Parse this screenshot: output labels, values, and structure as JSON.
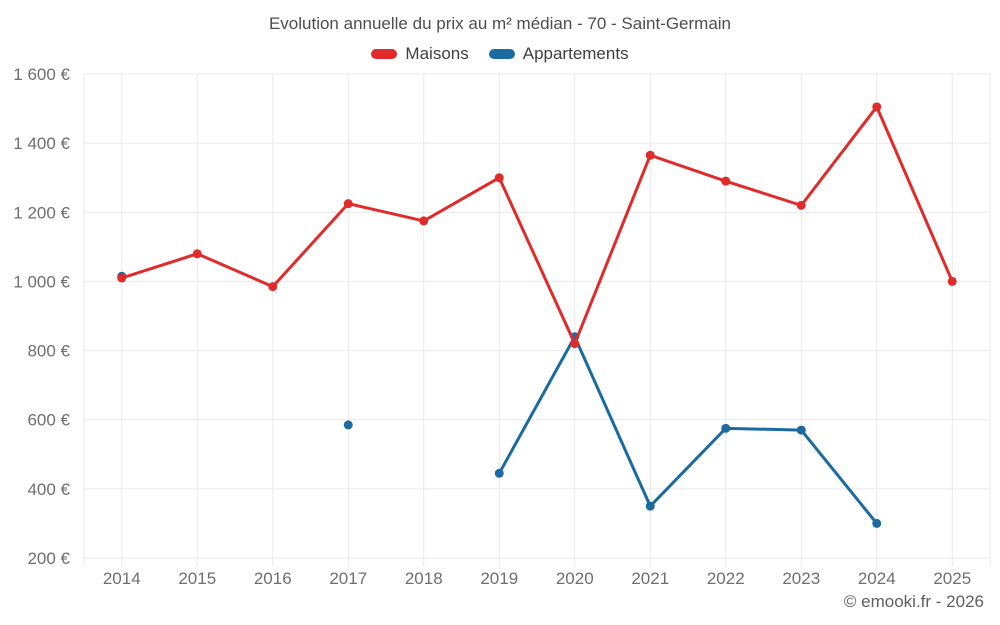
{
  "header": {
    "title": "Evolution annuelle du prix au m² médian - 70 - Saint-Germain",
    "copyright": "© emooki.fr - 2026"
  },
  "colors": {
    "maisons_red": "#e12b2b",
    "appartements_blue": "#1b6aa0",
    "gridline": "#e9e9e9",
    "axis_label_text": "#6f6f6f",
    "title_text": "#4e4e4e",
    "legend_text": "#3f3f3f",
    "copyright_text": "#5f5f5f"
  },
  "chart_data": {
    "type": "line",
    "title": "Evolution annuelle du prix au m² médian - 70 - Saint-Germain",
    "categories": [
      "2014",
      "2015",
      "2016",
      "2017",
      "2018",
      "2019",
      "2020",
      "2021",
      "2022",
      "2023",
      "2024",
      "2025"
    ],
    "series": [
      {
        "name": "Maisons",
        "color": "#e12b2b",
        "values": [
          1010,
          1080,
          985,
          1225,
          1175,
          1300,
          820,
          1365,
          1290,
          1220,
          1505,
          1000
        ]
      },
      {
        "name": "Appartements",
        "color": "#1b6aa0",
        "values": [
          1015,
          null,
          null,
          585,
          null,
          445,
          840,
          350,
          575,
          570,
          300,
          null
        ]
      }
    ],
    "ylim": [
      200,
      1600
    ],
    "yticks": [
      200,
      400,
      600,
      800,
      1000,
      1200,
      1400,
      1600
    ],
    "ytick_labels": [
      "200 €",
      "400 €",
      "600 €",
      "800 €",
      "1 000 €",
      "1 200 €",
      "1 400 €",
      "1 600 €"
    ],
    "grid": true,
    "legend_position": "top",
    "marker_radius": 4.5,
    "line_width": 3
  }
}
